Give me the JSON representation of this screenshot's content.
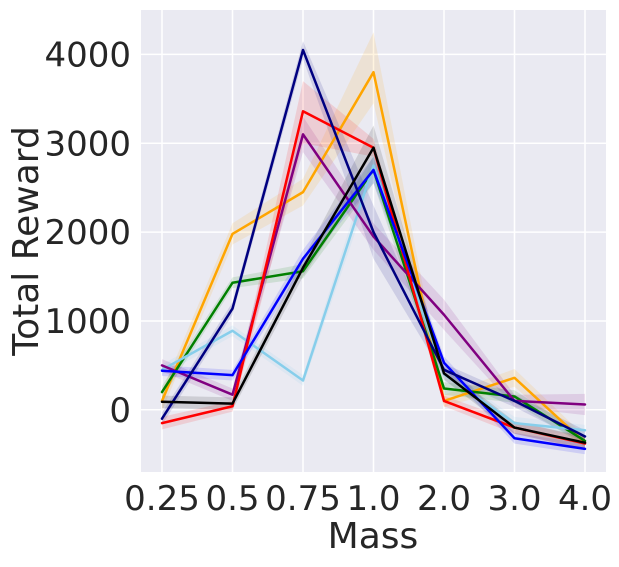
{
  "chart_data": {
    "type": "line",
    "title": "",
    "xlabel": "Mass",
    "ylabel": "Total Reward",
    "categories": [
      "0.25",
      "0.5",
      "0.75",
      "1.0",
      "2.0",
      "3.0",
      "4.0"
    ],
    "yticks": [
      0,
      1000,
      2000,
      3000,
      4000
    ],
    "ytick_labels": [
      "0",
      "1000",
      "2000",
      "3000",
      "4000"
    ],
    "ylim": [
      -700,
      4500
    ],
    "grid": true,
    "background": "#eaeaf2",
    "series": [
      {
        "color": "#ffa500",
        "values": [
          100,
          1980,
          2450,
          3800,
          100,
          360,
          -370
        ],
        "band": [
          [
            -10,
            210
          ],
          [
            1860,
            2100
          ],
          [
            2300,
            2600
          ],
          [
            3450,
            4250
          ],
          [
            30,
            170
          ],
          [
            260,
            460
          ],
          [
            -440,
            -300
          ]
        ]
      },
      {
        "color": "#008000",
        "values": [
          200,
          1430,
          1560,
          2700,
          240,
          150,
          -350
        ],
        "band": [
          [
            130,
            270
          ],
          [
            1370,
            1490
          ],
          [
            1480,
            1640
          ],
          [
            2550,
            2850
          ],
          [
            170,
            310
          ],
          [
            80,
            220
          ],
          [
            -410,
            -290
          ]
        ]
      },
      {
        "color": "#87ceeb",
        "values": [
          450,
          890,
          330,
          2750,
          400,
          -150,
          -230
        ],
        "band": [
          [
            390,
            510
          ],
          [
            830,
            950
          ],
          [
            270,
            390
          ],
          [
            2600,
            2900
          ],
          [
            330,
            470
          ],
          [
            -220,
            -80
          ],
          [
            -290,
            -170
          ]
        ]
      },
      {
        "color": "#800080",
        "values": [
          500,
          170,
          3100,
          1950,
          1070,
          100,
          60
        ],
        "band": [
          [
            430,
            570
          ],
          [
            100,
            240
          ],
          [
            2900,
            3300
          ],
          [
            1800,
            2100
          ],
          [
            900,
            1240
          ],
          [
            30,
            170
          ],
          [
            -60,
            180
          ]
        ]
      },
      {
        "color": "#ff0000",
        "values": [
          -150,
          40,
          3360,
          2950,
          100,
          -200,
          -380
        ],
        "band": [
          [
            -220,
            -80
          ],
          [
            -20,
            100
          ],
          [
            3000,
            3700
          ],
          [
            2850,
            3050
          ],
          [
            40,
            160
          ],
          [
            -270,
            -130
          ],
          [
            -450,
            -310
          ]
        ]
      },
      {
        "color": "#0000ff",
        "values": [
          440,
          390,
          1700,
          2700,
          530,
          -320,
          -440
        ],
        "band": [
          [
            380,
            500
          ],
          [
            330,
            450
          ],
          [
            1600,
            1800
          ],
          [
            2550,
            2850
          ],
          [
            460,
            600
          ],
          [
            -380,
            -260
          ],
          [
            -500,
            -380
          ]
        ]
      },
      {
        "color": "#000080",
        "values": [
          -100,
          1140,
          4050,
          2000,
          450,
          100,
          -300
        ],
        "band": [
          [
            -170,
            -30
          ],
          [
            1070,
            1210
          ],
          [
            3950,
            4150
          ],
          [
            1700,
            2300
          ],
          [
            380,
            520
          ],
          [
            30,
            170
          ],
          [
            -370,
            -230
          ]
        ]
      },
      {
        "color": "#000000",
        "values": [
          90,
          70,
          1600,
          2950,
          410,
          -200,
          -370
        ],
        "band": [
          [
            20,
            160
          ],
          [
            0,
            140
          ],
          [
            1500,
            1700
          ],
          [
            2700,
            3200
          ],
          [
            340,
            480
          ],
          [
            -270,
            -130
          ],
          [
            -440,
            -300
          ]
        ]
      }
    ]
  }
}
